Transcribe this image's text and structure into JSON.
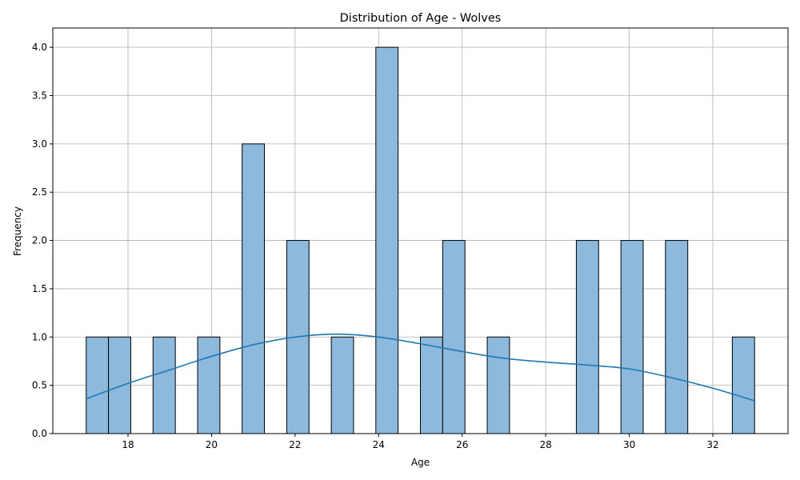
{
  "chart_data": {
    "type": "bar",
    "title": "Distribution of Age - Wolves",
    "xlabel": "Age",
    "ylabel": "Frequency",
    "xlim": [
      16.2,
      33.8
    ],
    "ylim": [
      0,
      4.2
    ],
    "xticks": [
      18,
      20,
      22,
      24,
      26,
      28,
      30,
      32
    ],
    "yticks": [
      0.0,
      0.5,
      1.0,
      1.5,
      2.0,
      2.5,
      3.0,
      3.5,
      4.0
    ],
    "ytick_labels": [
      "0.0",
      "0.5",
      "1.0",
      "1.5",
      "2.0",
      "2.5",
      "3.0",
      "3.5",
      "4.0"
    ],
    "grid": true,
    "bin_width": 0.5333,
    "bins": [
      {
        "start": 17.0,
        "count": 1
      },
      {
        "start": 17.533,
        "count": 1
      },
      {
        "start": 18.6,
        "count": 1
      },
      {
        "start": 19.667,
        "count": 1
      },
      {
        "start": 20.733,
        "count": 3
      },
      {
        "start": 21.8,
        "count": 2
      },
      {
        "start": 22.867,
        "count": 1
      },
      {
        "start": 23.933,
        "count": 4
      },
      {
        "start": 25.0,
        "count": 1
      },
      {
        "start": 25.533,
        "count": 2
      },
      {
        "start": 26.6,
        "count": 1
      },
      {
        "start": 28.733,
        "count": 2
      },
      {
        "start": 29.8,
        "count": 2
      },
      {
        "start": 30.867,
        "count": 2
      },
      {
        "start": 32.467,
        "count": 1
      }
    ],
    "kde": {
      "name": "KDE",
      "x": [
        17,
        18,
        19,
        20,
        21,
        22,
        23,
        24,
        25,
        26,
        27,
        28,
        29,
        30,
        31,
        32,
        33
      ],
      "y": [
        0.36,
        0.52,
        0.66,
        0.8,
        0.92,
        1.0,
        1.03,
        1.0,
        0.93,
        0.85,
        0.78,
        0.74,
        0.71,
        0.67,
        0.58,
        0.47,
        0.34
      ]
    },
    "colors": {
      "bar_fill": "#8cb9dc",
      "bar_edge": "#000000",
      "kde_line": "#1f77b4",
      "grid": "#b0b0b0"
    }
  }
}
